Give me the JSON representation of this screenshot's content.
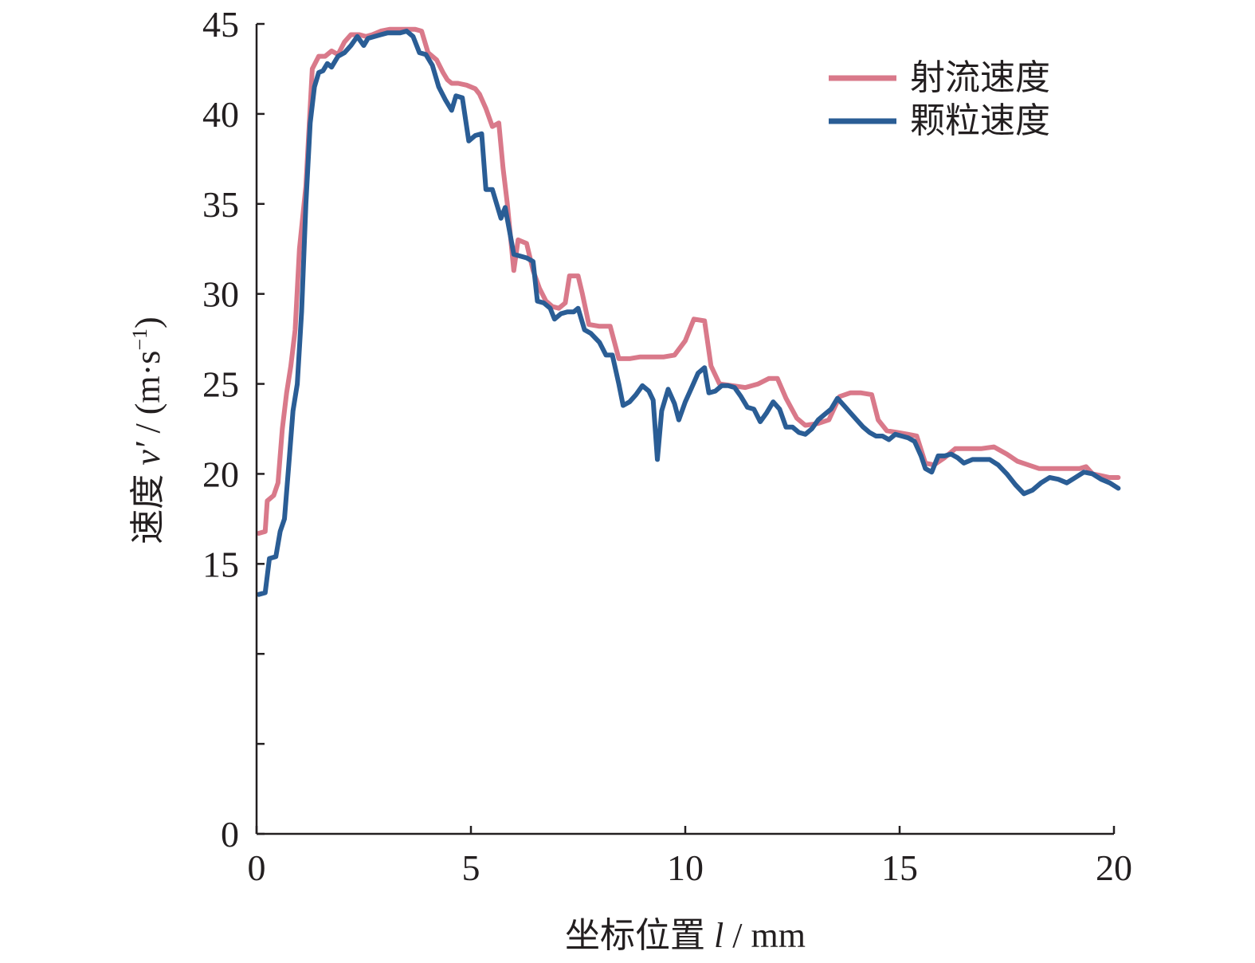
{
  "chart_data": {
    "type": "line",
    "xlabel_prefix": "坐标位置 ",
    "xlabel_var": "l",
    "xlabel_suffix": " / mm",
    "ylabel_prefix": "速度 ",
    "ylabel_var": "v′",
    "ylabel_suffix": " / (m·s",
    "ylabel_sup": "−1",
    "ylabel_close": ")",
    "xlim": [
      0,
      20
    ],
    "ylim": [
      0,
      45
    ],
    "xticks": [
      0,
      5,
      10,
      15,
      20
    ],
    "yticks": [
      0,
      5,
      10,
      15,
      20,
      25,
      30,
      35,
      40,
      45
    ],
    "ytick_labels": [
      "0",
      "",
      "",
      "15",
      "20",
      "25",
      "30",
      "35",
      "40",
      "45"
    ],
    "grid": false,
    "legend_position": "top-right",
    "series": [
      {
        "name": "射流速度",
        "color": "#d9798a",
        "points": [
          [
            0.05,
            16.7
          ],
          [
            0.2,
            16.8
          ],
          [
            0.25,
            18.5
          ],
          [
            0.4,
            18.8
          ],
          [
            0.5,
            19.5
          ],
          [
            0.6,
            22.5
          ],
          [
            0.7,
            24.5
          ],
          [
            0.8,
            26.0
          ],
          [
            0.9,
            28.0
          ],
          [
            1.0,
            32.5
          ],
          [
            1.15,
            36.0
          ],
          [
            1.3,
            42.5
          ],
          [
            1.45,
            43.2
          ],
          [
            1.6,
            43.2
          ],
          [
            1.75,
            43.5
          ],
          [
            1.9,
            43.3
          ],
          [
            2.05,
            44.0
          ],
          [
            2.2,
            44.4
          ],
          [
            2.4,
            44.4
          ],
          [
            2.55,
            44.3
          ],
          [
            2.7,
            44.4
          ],
          [
            2.9,
            44.6
          ],
          [
            3.1,
            44.7
          ],
          [
            3.3,
            44.7
          ],
          [
            3.5,
            44.7
          ],
          [
            3.7,
            44.7
          ],
          [
            3.85,
            44.6
          ],
          [
            4.0,
            43.4
          ],
          [
            4.2,
            43.0
          ],
          [
            4.35,
            42.3
          ],
          [
            4.45,
            41.9
          ],
          [
            4.55,
            41.7
          ],
          [
            4.7,
            41.7
          ],
          [
            4.9,
            41.6
          ],
          [
            5.1,
            41.4
          ],
          [
            5.2,
            41.1
          ],
          [
            5.35,
            40.3
          ],
          [
            5.5,
            39.3
          ],
          [
            5.65,
            39.5
          ],
          [
            5.75,
            37.0
          ],
          [
            5.85,
            35.0
          ],
          [
            6.0,
            31.3
          ],
          [
            6.1,
            33.0
          ],
          [
            6.3,
            32.8
          ],
          [
            6.45,
            31.3
          ],
          [
            6.6,
            30.3
          ],
          [
            6.75,
            29.6
          ],
          [
            6.9,
            29.3
          ],
          [
            7.05,
            29.2
          ],
          [
            7.2,
            29.5
          ],
          [
            7.3,
            31.0
          ],
          [
            7.5,
            31.0
          ],
          [
            7.6,
            30.0
          ],
          [
            7.75,
            28.3
          ],
          [
            8.0,
            28.2
          ],
          [
            8.25,
            28.2
          ],
          [
            8.45,
            26.4
          ],
          [
            8.7,
            26.4
          ],
          [
            8.95,
            26.5
          ],
          [
            9.2,
            26.5
          ],
          [
            9.5,
            26.5
          ],
          [
            9.75,
            26.6
          ],
          [
            10.0,
            27.4
          ],
          [
            10.2,
            28.6
          ],
          [
            10.45,
            28.5
          ],
          [
            10.6,
            26.0
          ],
          [
            10.8,
            25.0
          ],
          [
            11.1,
            24.9
          ],
          [
            11.4,
            24.8
          ],
          [
            11.7,
            25.0
          ],
          [
            11.95,
            25.3
          ],
          [
            12.15,
            25.3
          ],
          [
            12.35,
            24.2
          ],
          [
            12.6,
            23.1
          ],
          [
            12.8,
            22.7
          ],
          [
            13.1,
            22.8
          ],
          [
            13.35,
            23.0
          ],
          [
            13.6,
            24.3
          ],
          [
            13.85,
            24.5
          ],
          [
            14.1,
            24.5
          ],
          [
            14.35,
            24.4
          ],
          [
            14.5,
            23.0
          ],
          [
            14.7,
            22.4
          ],
          [
            14.95,
            22.3
          ],
          [
            15.2,
            22.2
          ],
          [
            15.4,
            22.1
          ],
          [
            15.6,
            20.6
          ],
          [
            15.8,
            20.5
          ],
          [
            16.05,
            20.9
          ],
          [
            16.3,
            21.4
          ],
          [
            16.6,
            21.4
          ],
          [
            16.9,
            21.4
          ],
          [
            17.2,
            21.5
          ],
          [
            17.5,
            21.1
          ],
          [
            17.75,
            20.7
          ],
          [
            18.0,
            20.5
          ],
          [
            18.25,
            20.3
          ],
          [
            18.5,
            20.3
          ],
          [
            18.75,
            20.3
          ],
          [
            19.0,
            20.3
          ],
          [
            19.2,
            20.3
          ],
          [
            19.35,
            20.4
          ],
          [
            19.5,
            20.0
          ],
          [
            19.7,
            19.9
          ],
          [
            19.9,
            19.8
          ],
          [
            20.1,
            19.8
          ]
        ]
      },
      {
        "name": "颗粒速度",
        "color": "#2a5d95",
        "points": [
          [
            0.05,
            13.3
          ],
          [
            0.2,
            13.4
          ],
          [
            0.3,
            15.3
          ],
          [
            0.45,
            15.4
          ],
          [
            0.55,
            16.8
          ],
          [
            0.65,
            17.5
          ],
          [
            0.75,
            20.5
          ],
          [
            0.85,
            23.5
          ],
          [
            0.95,
            25.0
          ],
          [
            1.05,
            29.0
          ],
          [
            1.15,
            35.0
          ],
          [
            1.25,
            39.5
          ],
          [
            1.35,
            41.5
          ],
          [
            1.45,
            42.3
          ],
          [
            1.55,
            42.4
          ],
          [
            1.65,
            42.8
          ],
          [
            1.75,
            42.6
          ],
          [
            1.9,
            43.2
          ],
          [
            2.05,
            43.4
          ],
          [
            2.2,
            43.8
          ],
          [
            2.35,
            44.3
          ],
          [
            2.5,
            43.8
          ],
          [
            2.6,
            44.2
          ],
          [
            2.75,
            44.3
          ],
          [
            2.9,
            44.4
          ],
          [
            3.05,
            44.5
          ],
          [
            3.2,
            44.5
          ],
          [
            3.35,
            44.5
          ],
          [
            3.5,
            44.6
          ],
          [
            3.65,
            44.3
          ],
          [
            3.8,
            43.4
          ],
          [
            3.95,
            43.3
          ],
          [
            4.1,
            42.7
          ],
          [
            4.25,
            41.5
          ],
          [
            4.4,
            40.8
          ],
          [
            4.55,
            40.2
          ],
          [
            4.65,
            41.0
          ],
          [
            4.8,
            40.9
          ],
          [
            4.95,
            38.5
          ],
          [
            5.1,
            38.8
          ],
          [
            5.25,
            38.9
          ],
          [
            5.35,
            35.8
          ],
          [
            5.5,
            35.8
          ],
          [
            5.6,
            35.0
          ],
          [
            5.7,
            34.2
          ],
          [
            5.8,
            34.8
          ],
          [
            5.9,
            33.5
          ],
          [
            6.0,
            32.2
          ],
          [
            6.15,
            32.1
          ],
          [
            6.3,
            32.0
          ],
          [
            6.45,
            31.8
          ],
          [
            6.55,
            29.6
          ],
          [
            6.7,
            29.5
          ],
          [
            6.85,
            29.2
          ],
          [
            6.95,
            28.6
          ],
          [
            7.1,
            28.9
          ],
          [
            7.25,
            29.0
          ],
          [
            7.4,
            29.0
          ],
          [
            7.5,
            29.2
          ],
          [
            7.65,
            28.0
          ],
          [
            7.8,
            27.8
          ],
          [
            8.0,
            27.3
          ],
          [
            8.15,
            26.6
          ],
          [
            8.3,
            26.6
          ],
          [
            8.45,
            25.0
          ],
          [
            8.55,
            23.8
          ],
          [
            8.7,
            24.0
          ],
          [
            8.85,
            24.4
          ],
          [
            9.0,
            24.9
          ],
          [
            9.15,
            24.6
          ],
          [
            9.25,
            24.1
          ],
          [
            9.35,
            20.8
          ],
          [
            9.45,
            23.5
          ],
          [
            9.6,
            24.7
          ],
          [
            9.75,
            23.9
          ],
          [
            9.85,
            23.0
          ],
          [
            10.0,
            24.0
          ],
          [
            10.15,
            24.8
          ],
          [
            10.3,
            25.6
          ],
          [
            10.45,
            25.9
          ],
          [
            10.55,
            24.5
          ],
          [
            10.7,
            24.6
          ],
          [
            10.85,
            24.9
          ],
          [
            11.0,
            24.9
          ],
          [
            11.15,
            24.8
          ],
          [
            11.3,
            24.3
          ],
          [
            11.45,
            23.7
          ],
          [
            11.6,
            23.6
          ],
          [
            11.75,
            22.9
          ],
          [
            11.9,
            23.4
          ],
          [
            12.05,
            24.0
          ],
          [
            12.2,
            23.6
          ],
          [
            12.35,
            22.6
          ],
          [
            12.5,
            22.6
          ],
          [
            12.65,
            22.3
          ],
          [
            12.8,
            22.2
          ],
          [
            12.95,
            22.5
          ],
          [
            13.1,
            23.0
          ],
          [
            13.25,
            23.3
          ],
          [
            13.4,
            23.6
          ],
          [
            13.55,
            24.2
          ],
          [
            13.7,
            23.8
          ],
          [
            13.85,
            23.4
          ],
          [
            14.0,
            23.0
          ],
          [
            14.15,
            22.6
          ],
          [
            14.3,
            22.3
          ],
          [
            14.45,
            22.1
          ],
          [
            14.6,
            22.1
          ],
          [
            14.75,
            21.9
          ],
          [
            14.9,
            22.2
          ],
          [
            15.05,
            22.1
          ],
          [
            15.2,
            22.0
          ],
          [
            15.35,
            21.8
          ],
          [
            15.5,
            21.0
          ],
          [
            15.6,
            20.3
          ],
          [
            15.75,
            20.1
          ],
          [
            15.9,
            21.0
          ],
          [
            16.05,
            21.0
          ],
          [
            16.2,
            21.1
          ],
          [
            16.35,
            20.9
          ],
          [
            16.5,
            20.6
          ],
          [
            16.7,
            20.8
          ],
          [
            16.9,
            20.8
          ],
          [
            17.1,
            20.8
          ],
          [
            17.3,
            20.5
          ],
          [
            17.5,
            20.0
          ],
          [
            17.7,
            19.4
          ],
          [
            17.9,
            18.9
          ],
          [
            18.1,
            19.1
          ],
          [
            18.3,
            19.5
          ],
          [
            18.5,
            19.8
          ],
          [
            18.7,
            19.7
          ],
          [
            18.9,
            19.5
          ],
          [
            19.1,
            19.8
          ],
          [
            19.3,
            20.1
          ],
          [
            19.5,
            20.0
          ],
          [
            19.7,
            19.7
          ],
          [
            19.9,
            19.5
          ],
          [
            20.1,
            19.2
          ]
        ]
      }
    ]
  }
}
